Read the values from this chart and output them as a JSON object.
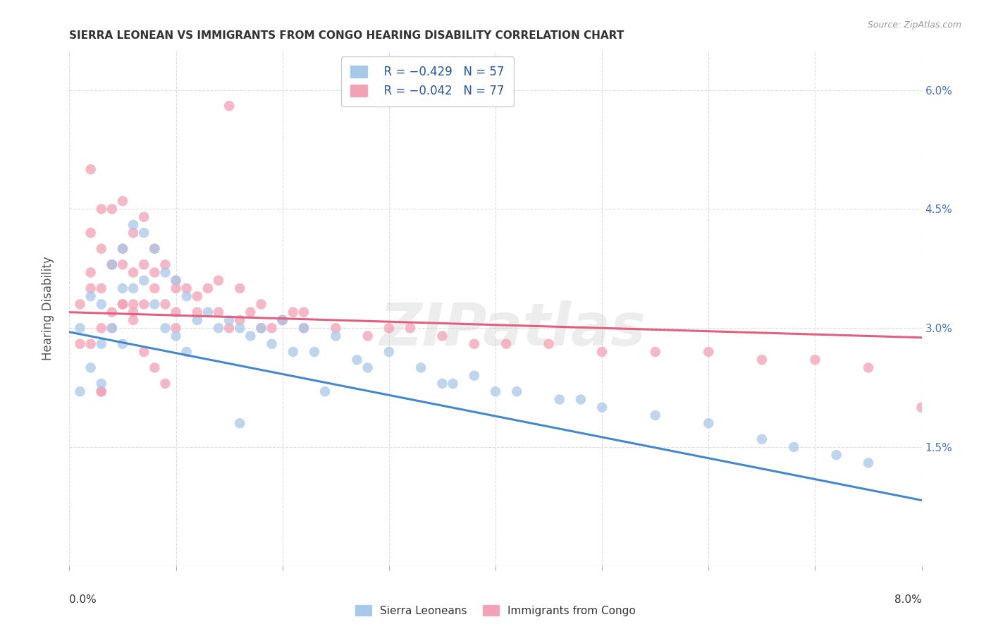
{
  "title": "SIERRA LEONEAN VS IMMIGRANTS FROM CONGO HEARING DISABILITY CORRELATION CHART",
  "source": "Source: ZipAtlas.com",
  "ylabel": "Hearing Disability",
  "xmin": 0.0,
  "xmax": 0.08,
  "ymin": 0.0,
  "ymax": 0.065,
  "yticks": [
    0.0,
    0.015,
    0.03,
    0.045,
    0.06
  ],
  "ytick_labels": [
    "",
    "1.5%",
    "3.0%",
    "4.5%",
    "6.0%"
  ],
  "legend1_r": "R = −0.429",
  "legend1_n": "N = 57",
  "legend2_r": "R = −0.042",
  "legend2_n": "N = 77",
  "blue_color": "#a8c8e8",
  "pink_color": "#f4a0b5",
  "blue_line_color": "#4488cc",
  "pink_line_color": "#e06080",
  "legend_r_color": "#2255aa",
  "legend_label1": "Sierra Leoneans",
  "legend_label2": "Immigrants from Congo",
  "blue_x": [
    0.001,
    0.001,
    0.002,
    0.002,
    0.003,
    0.003,
    0.003,
    0.004,
    0.004,
    0.005,
    0.005,
    0.005,
    0.006,
    0.006,
    0.007,
    0.007,
    0.008,
    0.008,
    0.009,
    0.009,
    0.01,
    0.01,
    0.011,
    0.011,
    0.012,
    0.013,
    0.014,
    0.015,
    0.016,
    0.017,
    0.018,
    0.019,
    0.02,
    0.021,
    0.022,
    0.023,
    0.025,
    0.027,
    0.03,
    0.033,
    0.036,
    0.038,
    0.042,
    0.046,
    0.05,
    0.055,
    0.06,
    0.065,
    0.068,
    0.072,
    0.075,
    0.048,
    0.035,
    0.028,
    0.024,
    0.016,
    0.04
  ],
  "blue_y": [
    0.03,
    0.022,
    0.034,
    0.025,
    0.033,
    0.028,
    0.023,
    0.038,
    0.03,
    0.04,
    0.035,
    0.028,
    0.043,
    0.035,
    0.042,
    0.036,
    0.04,
    0.033,
    0.037,
    0.03,
    0.036,
    0.029,
    0.034,
    0.027,
    0.031,
    0.032,
    0.03,
    0.031,
    0.03,
    0.029,
    0.03,
    0.028,
    0.031,
    0.027,
    0.03,
    0.027,
    0.029,
    0.026,
    0.027,
    0.025,
    0.023,
    0.024,
    0.022,
    0.021,
    0.02,
    0.019,
    0.018,
    0.016,
    0.015,
    0.014,
    0.013,
    0.021,
    0.023,
    0.025,
    0.022,
    0.018,
    0.022
  ],
  "pink_x": [
    0.001,
    0.001,
    0.002,
    0.002,
    0.002,
    0.003,
    0.003,
    0.003,
    0.004,
    0.004,
    0.004,
    0.005,
    0.005,
    0.005,
    0.006,
    0.006,
    0.006,
    0.007,
    0.007,
    0.007,
    0.008,
    0.008,
    0.009,
    0.009,
    0.01,
    0.01,
    0.011,
    0.012,
    0.013,
    0.014,
    0.015,
    0.016,
    0.017,
    0.018,
    0.019,
    0.02,
    0.021,
    0.022,
    0.014,
    0.016,
    0.018,
    0.02,
    0.022,
    0.025,
    0.028,
    0.03,
    0.032,
    0.035,
    0.038,
    0.041,
    0.045,
    0.05,
    0.055,
    0.06,
    0.065,
    0.07,
    0.075,
    0.08,
    0.01,
    0.012,
    0.008,
    0.003,
    0.002,
    0.004,
    0.006,
    0.007,
    0.009,
    0.005,
    0.003,
    0.004,
    0.002,
    0.003,
    0.005,
    0.006,
    0.008,
    0.01,
    0.015
  ],
  "pink_y": [
    0.033,
    0.028,
    0.042,
    0.035,
    0.028,
    0.04,
    0.035,
    0.03,
    0.045,
    0.038,
    0.03,
    0.046,
    0.04,
    0.033,
    0.042,
    0.037,
    0.033,
    0.044,
    0.038,
    0.033,
    0.04,
    0.035,
    0.038,
    0.033,
    0.035,
    0.03,
    0.035,
    0.034,
    0.035,
    0.036,
    0.058,
    0.035,
    0.032,
    0.033,
    0.03,
    0.031,
    0.032,
    0.032,
    0.032,
    0.031,
    0.03,
    0.031,
    0.03,
    0.03,
    0.029,
    0.03,
    0.03,
    0.029,
    0.028,
    0.028,
    0.028,
    0.027,
    0.027,
    0.027,
    0.026,
    0.026,
    0.025,
    0.02,
    0.036,
    0.032,
    0.037,
    0.022,
    0.05,
    0.038,
    0.031,
    0.027,
    0.023,
    0.033,
    0.022,
    0.032,
    0.037,
    0.045,
    0.038,
    0.032,
    0.025,
    0.032,
    0.03
  ],
  "blue_slope": -0.265,
  "blue_intercept": 0.0295,
  "pink_slope": -0.04,
  "pink_intercept": 0.032,
  "watermark": "ZIPatlas",
  "background_color": "#ffffff",
  "grid_color": "#dddddd"
}
